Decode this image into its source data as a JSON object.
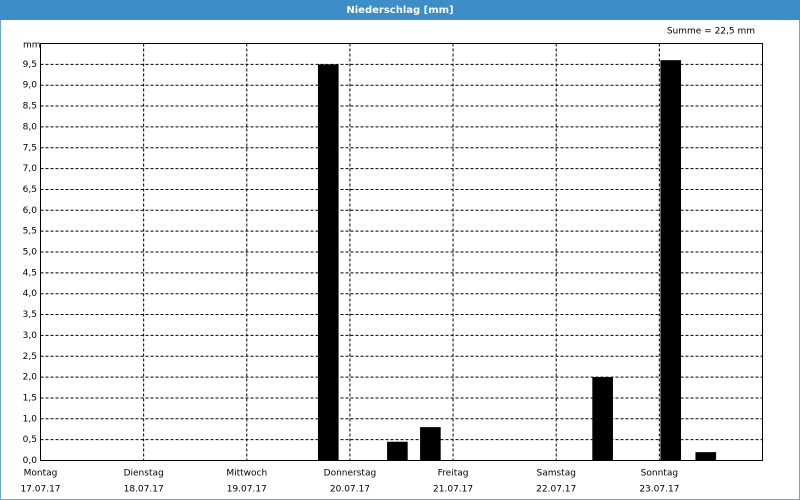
{
  "chart_data": {
    "type": "bar",
    "title": "Niederschlag [mm]",
    "annotation": "Summe = 22,5 mm",
    "y_label": "mm",
    "color": "#000000",
    "grid": true,
    "xlim": [
      0,
      7
    ],
    "xticks": [
      {
        "value": 0,
        "label": [
          "Montag",
          "17.07.17"
        ]
      },
      {
        "value": 1,
        "label": [
          "Dienstag",
          "18.07.17"
        ]
      },
      {
        "value": 2,
        "label": [
          "Mittwoch",
          "19.07.17"
        ]
      },
      {
        "value": 3,
        "label": [
          "Donnerstag",
          "20.07.17"
        ]
      },
      {
        "value": 4,
        "label": [
          "Freitag",
          "21.07.17"
        ]
      },
      {
        "value": 5,
        "label": [
          "Samstag",
          "22.07.17"
        ]
      },
      {
        "value": 6,
        "label": [
          "Sonntag",
          "23.07.17"
        ]
      }
    ],
    "x": [
      2.79,
      3.46,
      3.78,
      5.45,
      6.11,
      6.45
    ],
    "values": [
      9.5,
      0.45,
      0.8,
      2.0,
      9.6,
      0.2
    ],
    "ylim": [
      0,
      10
    ],
    "yticks": [
      {
        "value": 0,
        "label": "0,0"
      },
      {
        "value": 0.5,
        "label": "0,5"
      },
      {
        "value": 1,
        "label": "1,0"
      },
      {
        "value": 1.5,
        "label": "1,5"
      },
      {
        "value": 2,
        "label": "2,0"
      },
      {
        "value": 2.5,
        "label": "2,5"
      },
      {
        "value": 3,
        "label": "3,0"
      },
      {
        "value": 3.5,
        "label": "3,5"
      },
      {
        "value": 4,
        "label": "4,0"
      },
      {
        "value": 4.5,
        "label": "4,5"
      },
      {
        "value": 5,
        "label": "5,0"
      },
      {
        "value": 5.5,
        "label": "5,5"
      },
      {
        "value": 6,
        "label": "6,0"
      },
      {
        "value": 6.5,
        "label": "6,5"
      },
      {
        "value": 7,
        "label": "7,0"
      },
      {
        "value": 7.5,
        "label": "7,5"
      },
      {
        "value": 8,
        "label": "8,0"
      },
      {
        "value": 8.5,
        "label": "8,5"
      },
      {
        "value": 9,
        "label": "9,0"
      },
      {
        "value": 9.5,
        "label": "9,5"
      }
    ]
  }
}
